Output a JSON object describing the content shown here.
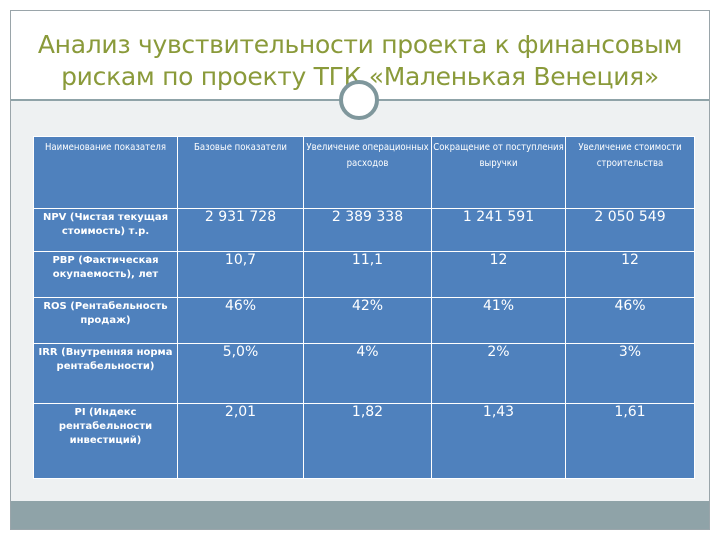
{
  "slide": {
    "title_line1": "Анализ чувствительности проекта к финансовым",
    "title_line2": "рискам по проекту ТГК «Маленькая Венеция»",
    "colors": {
      "title": "#8a9a3a",
      "table_fill": "#4f81bd",
      "accent_bar": "#8fa3a8"
    }
  },
  "table": {
    "headers": [
      "Наименование показателя",
      "Базовые показатели",
      "Увеличение операционных расходов",
      "Сокращение от поступления выручки",
      "Увеличение стоимости строительства"
    ],
    "rows": [
      {
        "label": "NPV (Чистая текущая стоимость) т.р.",
        "values": [
          "2 931 728",
          "2 389 338",
          "1 241 591",
          "2 050 549"
        ]
      },
      {
        "label": "РВР (Фактическая окупаемость), лет",
        "values": [
          "10,7",
          "11,1",
          "12",
          "12"
        ]
      },
      {
        "label": "ROS (Рентабельность продаж)",
        "values": [
          "46%",
          "42%",
          "41%",
          "46%"
        ]
      },
      {
        "label": "IRR (Внутренняя норма рентабельности)",
        "values": [
          "5,0%",
          "4%",
          "2%",
          "3%"
        ]
      },
      {
        "label": "PI (Индекс рентабельности инвестиций)",
        "values": [
          "2,01",
          "1,82",
          "1,43",
          "1,61"
        ]
      }
    ]
  }
}
